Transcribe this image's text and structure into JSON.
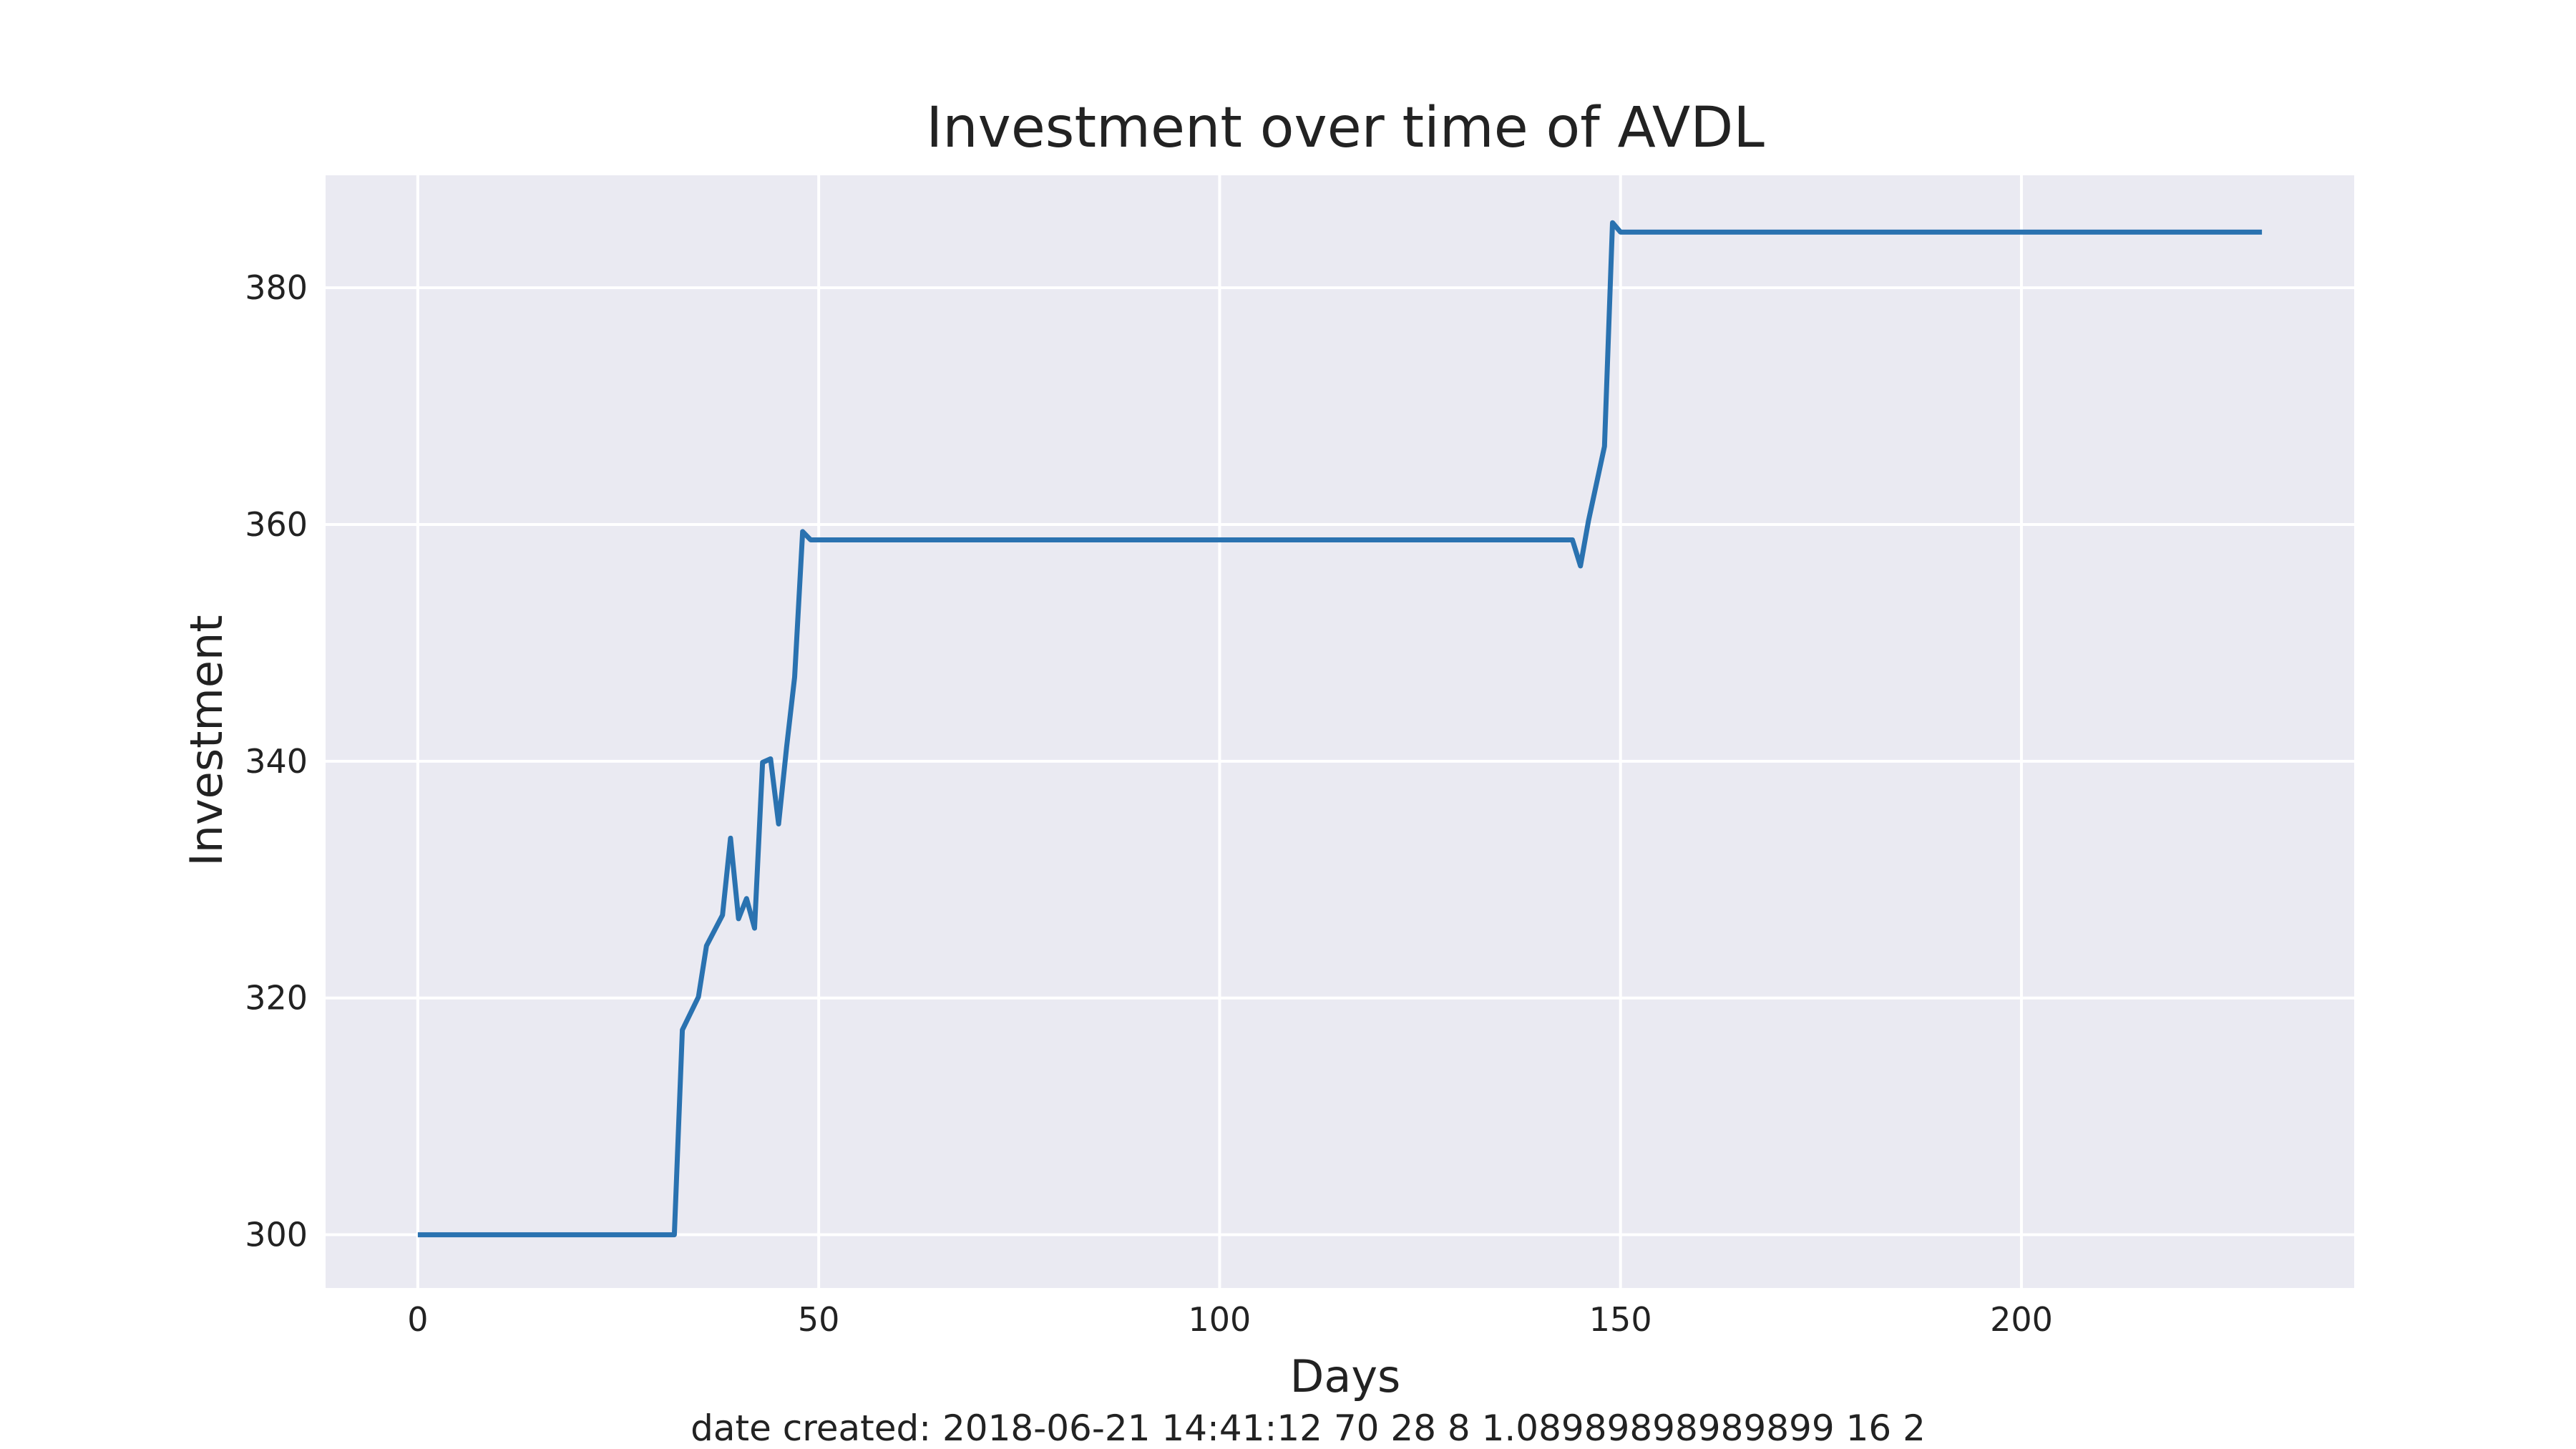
{
  "chart_data": {
    "type": "line",
    "title": "Investment over time of AVDL",
    "xlabel": "Days",
    "ylabel": "Investment",
    "xlim": [
      -11.5,
      241.5
    ],
    "ylim": [
      295.5,
      389.5
    ],
    "xticks": [
      0,
      50,
      100,
      150,
      200
    ],
    "yticks": [
      300,
      320,
      340,
      360,
      380
    ],
    "grid": true,
    "background": "#eaeaf2",
    "series": [
      {
        "name": "",
        "color": "#2a72b0",
        "x": [
          0,
          32,
          33,
          35,
          36,
          38,
          39,
          40,
          41,
          42,
          43,
          44,
          45,
          46,
          47,
          48,
          49,
          144,
          145,
          146,
          148,
          149,
          150,
          230
        ],
        "y": [
          300,
          300,
          317.3,
          320.1,
          324.4,
          327.0,
          333.5,
          326.7,
          328.4,
          325.9,
          339.9,
          340.2,
          334.7,
          341.2,
          347.1,
          359.4,
          358.7,
          358.7,
          356.5,
          360.3,
          366.6,
          385.5,
          384.7,
          384.7
        ]
      }
    ]
  },
  "footer": "date created: 2018-06-21 14:41:12 70 28 8 1.08989898989899 16 2"
}
